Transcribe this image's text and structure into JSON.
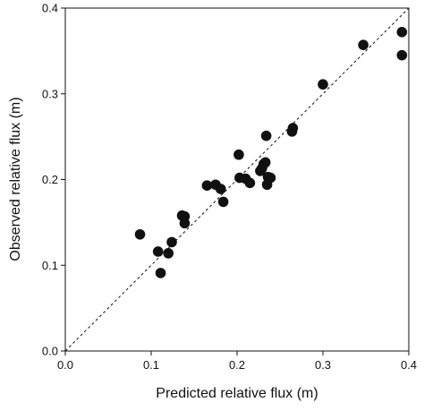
{
  "chart_data": {
    "type": "scatter",
    "xlabel": "Predicted relative flux (m)",
    "ylabel": "Observed relative flux (m)",
    "xlim": [
      0,
      0.4
    ],
    "ylim": [
      0,
      0.4
    ],
    "xticks": [
      "0.0",
      "0.1",
      "0.2",
      "0.3",
      "0.4"
    ],
    "yticks": [
      "0.0",
      "0.1",
      "0.2",
      "0.3",
      "0.4"
    ],
    "grid": false,
    "reference_line": {
      "from": [
        0,
        0
      ],
      "to": [
        0.4,
        0.4
      ],
      "style": "dashed"
    },
    "marker_color": "#111111",
    "series": [
      {
        "points": [
          [
            0.087,
            0.136
          ],
          [
            0.108,
            0.116
          ],
          [
            0.111,
            0.091
          ],
          [
            0.12,
            0.114
          ],
          [
            0.124,
            0.127
          ],
          [
            0.136,
            0.158
          ],
          [
            0.139,
            0.149
          ],
          [
            0.139,
            0.157
          ],
          [
            0.165,
            0.193
          ],
          [
            0.175,
            0.194
          ],
          [
            0.181,
            0.189
          ],
          [
            0.184,
            0.174
          ],
          [
            0.202,
            0.229
          ],
          [
            0.203,
            0.202
          ],
          [
            0.21,
            0.201
          ],
          [
            0.215,
            0.196
          ],
          [
            0.227,
            0.21
          ],
          [
            0.229,
            0.213
          ],
          [
            0.231,
            0.218
          ],
          [
            0.233,
            0.22
          ],
          [
            0.234,
            0.251
          ],
          [
            0.235,
            0.194
          ],
          [
            0.236,
            0.203
          ],
          [
            0.239,
            0.202
          ],
          [
            0.264,
            0.256
          ],
          [
            0.265,
            0.26
          ],
          [
            0.3,
            0.311
          ],
          [
            0.347,
            0.357
          ],
          [
            0.392,
            0.372
          ],
          [
            0.392,
            0.345
          ]
        ]
      }
    ]
  }
}
